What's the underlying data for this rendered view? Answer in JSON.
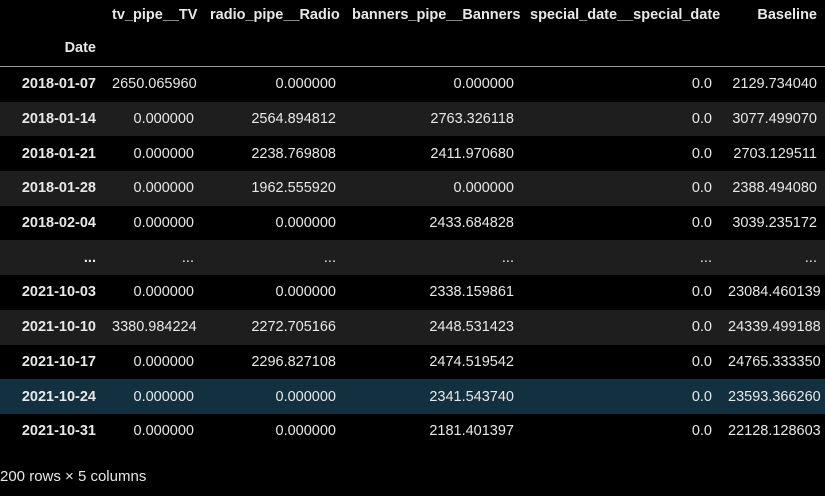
{
  "table": {
    "columns": [
      "tv_pipe__TV",
      "radio_pipe__Radio",
      "banners_pipe__Banners",
      "special_date__special_date",
      "Baseline"
    ],
    "index_name": "Date",
    "rows": [
      {
        "index": "2018-01-07",
        "values": [
          "2650.065960",
          "0.000000",
          "0.000000",
          "0.0",
          "2129.734040"
        ]
      },
      {
        "index": "2018-01-14",
        "values": [
          "0.000000",
          "2564.894812",
          "2763.326118",
          "0.0",
          "3077.499070"
        ]
      },
      {
        "index": "2018-01-21",
        "values": [
          "0.000000",
          "2238.769808",
          "2411.970680",
          "0.0",
          "2703.129511"
        ]
      },
      {
        "index": "2018-01-28",
        "values": [
          "0.000000",
          "1962.555920",
          "0.000000",
          "0.0",
          "2388.494080"
        ]
      },
      {
        "index": "2018-02-04",
        "values": [
          "0.000000",
          "0.000000",
          "2433.684828",
          "0.0",
          "3039.235172"
        ]
      },
      {
        "index": "...",
        "values": [
          "...",
          "...",
          "...",
          "...",
          "..."
        ]
      },
      {
        "index": "2021-10-03",
        "values": [
          "0.000000",
          "0.000000",
          "2338.159861",
          "0.0",
          "23084.460139"
        ]
      },
      {
        "index": "2021-10-10",
        "values": [
          "3380.984224",
          "2272.705166",
          "2448.531423",
          "0.0",
          "24339.499188"
        ]
      },
      {
        "index": "2021-10-17",
        "values": [
          "0.000000",
          "2296.827108",
          "2474.519542",
          "0.0",
          "24765.333350"
        ]
      },
      {
        "index": "2021-10-24",
        "values": [
          "0.000000",
          "0.000000",
          "2341.543740",
          "0.0",
          "23593.366260"
        ]
      },
      {
        "index": "2021-10-31",
        "values": [
          "0.000000",
          "0.000000",
          "2181.401397",
          "0.0",
          "22128.128603"
        ]
      }
    ]
  },
  "footer": "200 rows × 5 columns",
  "colors": {
    "background": "#000000",
    "stripe": "#1e1e1e",
    "hover_row": "#12303f",
    "text": "#e8e8e8"
  }
}
